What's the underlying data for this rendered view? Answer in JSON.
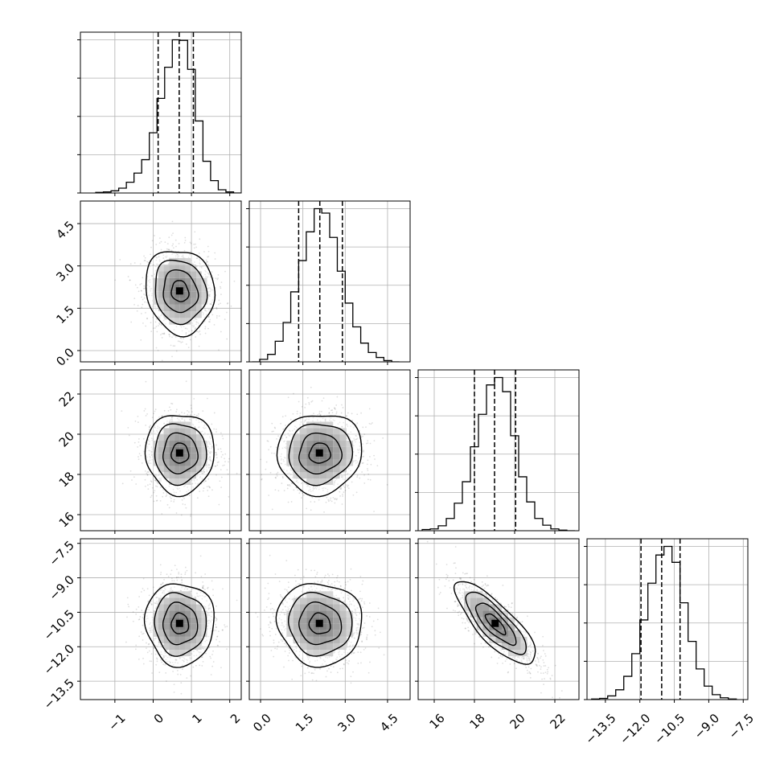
{
  "chart_data": {
    "type": "corner",
    "grid": true,
    "quantile_line_style": "dashed",
    "parameters": [
      {
        "range": [
          -1.9,
          2.3
        ],
        "ticks": [
          -1,
          0,
          1,
          2
        ],
        "tick_labels": [
          "−1",
          "0",
          "1",
          "2"
        ],
        "mean": 0.7,
        "sd": 0.45,
        "quantiles": [
          0.13,
          0.68,
          1.05
        ],
        "histogram": {
          "edges": [
            -1.5,
            -1.3,
            -1.1,
            -0.9,
            -0.7,
            -0.5,
            -0.3,
            -0.1,
            0.1,
            0.3,
            0.5,
            0.7,
            0.9,
            1.1,
            1.3,
            1.5,
            1.7,
            1.9,
            2.1,
            2.3
          ],
          "counts": [
            1,
            2,
            4,
            9,
            20,
            37,
            62,
            112,
            176,
            234,
            285,
            284,
            230,
            134,
            59,
            23,
            6,
            2,
            0
          ]
        }
      },
      {
        "range": [
          -0.4,
          5.3
        ],
        "ticks": [
          0.0,
          1.5,
          3.0,
          4.5
        ],
        "tick_labels": [
          "0.0",
          "1.5",
          "3.0",
          "4.5"
        ],
        "mean": 2.1,
        "sd": 0.75,
        "quantiles": [
          1.35,
          2.1,
          2.9
        ],
        "histogram": {
          "edges": [
            -0.3,
            -0.03,
            0.25,
            0.52,
            0.8,
            1.07,
            1.35,
            1.62,
            1.9,
            2.17,
            2.45,
            2.72,
            3.0,
            3.27,
            3.55,
            3.82,
            4.1,
            4.37,
            4.65,
            4.92
          ],
          "counts": [
            0,
            4,
            12,
            33,
            63,
            112,
            162,
            208,
            245,
            238,
            199,
            145,
            94,
            56,
            30,
            15,
            7,
            2,
            0
          ]
        }
      },
      {
        "range": [
          15.2,
          23.2
        ],
        "ticks": [
          16,
          18,
          20,
          22
        ],
        "tick_labels": [
          "16",
          "18",
          "20",
          "22"
        ],
        "mean": 19.05,
        "sd": 1.0,
        "quantiles": [
          18.0,
          19.0,
          20.05
        ],
        "histogram": {
          "edges": [
            15.4,
            15.8,
            16.2,
            16.6,
            17.0,
            17.4,
            17.8,
            18.2,
            18.6,
            19.0,
            19.4,
            19.8,
            20.2,
            20.6,
            21.0,
            21.4,
            21.8,
            22.2,
            22.6,
            23.0
          ],
          "counts": [
            2,
            3,
            8,
            20,
            45,
            80,
            137,
            190,
            238,
            250,
            227,
            155,
            88,
            47,
            20,
            9,
            3,
            1,
            0
          ]
        }
      },
      {
        "range": [
          -14.3,
          -7.3
        ],
        "ticks": [
          -13.5,
          -12.0,
          -10.5,
          -9.0,
          -7.5
        ],
        "tick_labels": [
          "−13.5",
          "−12.0",
          "−10.5",
          "−9.0",
          "−7.5"
        ],
        "mean": -11.0,
        "sd": 0.9,
        "quantiles": [
          -11.95,
          -11.05,
          -10.25
        ],
        "histogram": {
          "edges": [
            -14.1,
            -13.75,
            -13.4,
            -13.05,
            -12.7,
            -12.35,
            -12.0,
            -11.65,
            -11.3,
            -10.95,
            -10.6,
            -10.25,
            -9.9,
            -9.55,
            -9.2,
            -8.85,
            -8.5,
            -8.15,
            -7.8
          ],
          "counts": [
            1,
            2,
            6,
            16,
            38,
            75,
            130,
            190,
            236,
            250,
            224,
            158,
            95,
            50,
            22,
            8,
            3,
            1
          ]
        }
      }
    ],
    "pair_correlations": {
      "1-0": -0.1,
      "2-0": 0.0,
      "2-1": 0.05,
      "3-0": -0.02,
      "3-1": -0.05,
      "3-2": -0.8
    }
  }
}
